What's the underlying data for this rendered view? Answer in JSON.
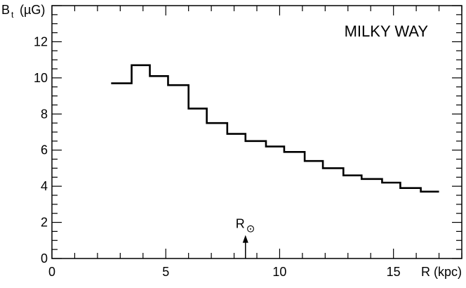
{
  "chart_data": {
    "type": "line",
    "style": "step",
    "title": "MILKY WAY",
    "xlabel": "R (kpc)",
    "ylabel": "B",
    "ylabel_subscript": "t",
    "ylabel_unit": "(µG)",
    "xlim": [
      0,
      18
    ],
    "ylim": [
      0,
      14
    ],
    "x_major_ticks": [
      0,
      5,
      10,
      15
    ],
    "x_tick_labels": [
      "0",
      "5",
      "10",
      "15"
    ],
    "y_major_ticks": [
      0,
      2,
      4,
      6,
      8,
      10,
      12
    ],
    "y_tick_labels": [
      "0",
      "2",
      "4",
      "6",
      "8",
      "10",
      "12"
    ],
    "grid": false,
    "legend": "none",
    "series": [
      {
        "bin_edges": [
          2.6,
          3.5,
          4.3,
          5.1,
          6.0,
          6.8,
          7.7,
          8.5,
          9.4,
          10.2,
          11.1,
          11.9,
          12.8,
          13.6,
          14.5,
          15.3,
          16.2,
          17.0
        ],
        "values": [
          9.7,
          10.7,
          10.1,
          9.6,
          8.3,
          7.5,
          6.9,
          6.5,
          6.2,
          5.9,
          5.4,
          5.0,
          4.6,
          4.4,
          4.2,
          3.9,
          3.7
        ]
      }
    ],
    "annotations": [
      {
        "label": "R",
        "symbol": "⊙",
        "x": 8.5,
        "type": "arrow"
      }
    ]
  }
}
